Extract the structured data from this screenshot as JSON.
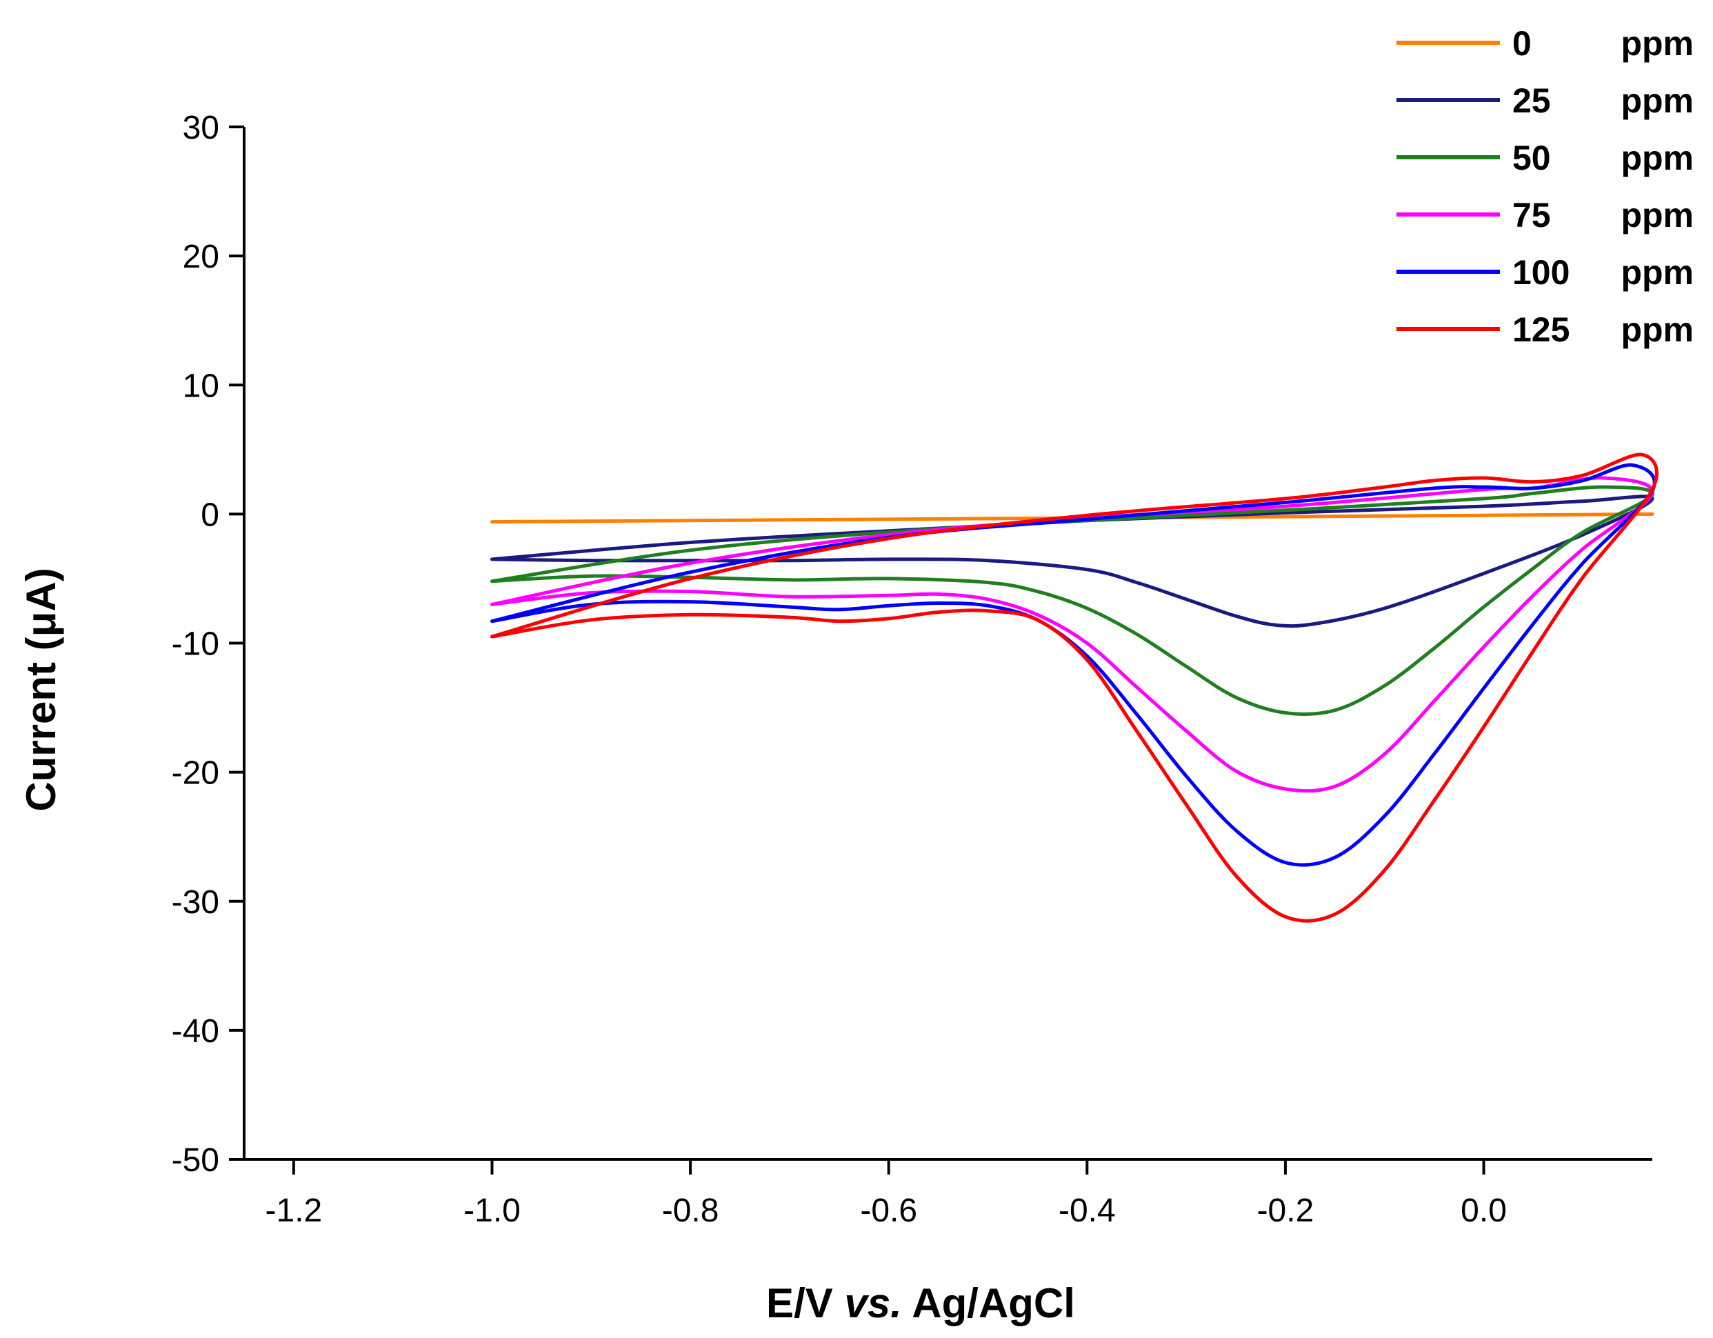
{
  "chart_data": {
    "type": "line",
    "title": "",
    "xlabel_prefix": "E/V ",
    "xlabel_italic": "vs.",
    "xlabel_suffix": " Ag/AgCl",
    "ylabel": "Current (μA)",
    "xlim": [
      -1.25,
      0.17
    ],
    "ylim": [
      -50,
      30
    ],
    "xticks": [
      -1.2,
      -1.0,
      -0.8,
      -0.6,
      -0.4,
      -0.2,
      0.0
    ],
    "xtick_labels": [
      "-1.2",
      "-1.0",
      "-0.8",
      "-0.6",
      "-0.4",
      "-0.2",
      "0.0"
    ],
    "yticks": [
      30,
      20,
      10,
      0,
      -10,
      -20,
      -30,
      -40,
      -50
    ],
    "ytick_labels": [
      "30",
      "20",
      "10",
      "0",
      "-10",
      "-20",
      "-30",
      "-40",
      "-50"
    ],
    "legend_position": "top-right",
    "series": [
      {
        "name": "0",
        "unit": "ppm",
        "color": "#ff8000",
        "points": [
          [
            -1.0,
            -0.6
          ],
          [
            -0.8,
            -0.5
          ],
          [
            -0.6,
            -0.4
          ],
          [
            -0.4,
            -0.3
          ],
          [
            -0.2,
            -0.2
          ],
          [
            0.0,
            -0.1
          ],
          [
            0.17,
            0.0
          ]
        ]
      },
      {
        "name": "25",
        "unit": "ppm",
        "color": "#1a1a80",
        "points": [
          [
            -1.0,
            -3.5
          ],
          [
            -0.9,
            -3.6
          ],
          [
            -0.8,
            -3.6
          ],
          [
            -0.7,
            -3.6
          ],
          [
            -0.6,
            -3.5
          ],
          [
            -0.5,
            -3.6
          ],
          [
            -0.4,
            -4.3
          ],
          [
            -0.35,
            -5.3
          ],
          [
            -0.3,
            -6.6
          ],
          [
            -0.25,
            -7.9
          ],
          [
            -0.21,
            -8.6
          ],
          [
            -0.17,
            -8.5
          ],
          [
            -0.1,
            -7.3
          ],
          [
            0.0,
            -4.6
          ],
          [
            0.1,
            -1.6
          ],
          [
            0.17,
            1.2
          ],
          [
            0.1,
            1.0
          ],
          [
            0.0,
            0.6
          ],
          [
            -0.2,
            0.1
          ],
          [
            -0.4,
            -0.5
          ],
          [
            -0.6,
            -1.3
          ],
          [
            -0.8,
            -2.2
          ],
          [
            -1.0,
            -3.5
          ]
        ]
      },
      {
        "name": "50",
        "unit": "ppm",
        "color": "#1f7f1f",
        "points": [
          [
            -1.0,
            -5.2
          ],
          [
            -0.9,
            -4.8
          ],
          [
            -0.8,
            -4.9
          ],
          [
            -0.7,
            -5.1
          ],
          [
            -0.6,
            -5.0
          ],
          [
            -0.5,
            -5.3
          ],
          [
            -0.45,
            -6.0
          ],
          [
            -0.4,
            -7.3
          ],
          [
            -0.35,
            -9.3
          ],
          [
            -0.3,
            -11.8
          ],
          [
            -0.25,
            -14.2
          ],
          [
            -0.2,
            -15.4
          ],
          [
            -0.15,
            -15.2
          ],
          [
            -0.1,
            -13.3
          ],
          [
            -0.05,
            -10.4
          ],
          [
            0.0,
            -7.2
          ],
          [
            0.05,
            -4.2
          ],
          [
            0.1,
            -1.4
          ],
          [
            0.17,
            1.5
          ],
          [
            0.12,
            2.1
          ],
          [
            0.05,
            1.6
          ],
          [
            0.0,
            1.2
          ],
          [
            -0.2,
            0.3
          ],
          [
            -0.4,
            -0.5
          ],
          [
            -0.6,
            -1.4
          ],
          [
            -0.8,
            -2.8
          ],
          [
            -1.0,
            -5.2
          ]
        ]
      },
      {
        "name": "75",
        "unit": "ppm",
        "color": "#ff00ff",
        "points": [
          [
            -1.0,
            -7.0
          ],
          [
            -0.9,
            -6.1
          ],
          [
            -0.8,
            -6.0
          ],
          [
            -0.7,
            -6.4
          ],
          [
            -0.6,
            -6.3
          ],
          [
            -0.55,
            -6.2
          ],
          [
            -0.5,
            -6.6
          ],
          [
            -0.45,
            -7.8
          ],
          [
            -0.4,
            -10.0
          ],
          [
            -0.35,
            -13.4
          ],
          [
            -0.3,
            -16.8
          ],
          [
            -0.25,
            -19.9
          ],
          [
            -0.2,
            -21.3
          ],
          [
            -0.15,
            -21.1
          ],
          [
            -0.1,
            -18.6
          ],
          [
            -0.05,
            -14.5
          ],
          [
            0.0,
            -10.3
          ],
          [
            0.05,
            -6.3
          ],
          [
            0.1,
            -2.7
          ],
          [
            0.17,
            1.6
          ],
          [
            0.12,
            2.8
          ],
          [
            0.05,
            2.0
          ],
          [
            0.0,
            1.9
          ],
          [
            -0.2,
            0.6
          ],
          [
            -0.4,
            -0.3
          ],
          [
            -0.6,
            -1.6
          ],
          [
            -0.8,
            -3.8
          ],
          [
            -1.0,
            -7.0
          ]
        ]
      },
      {
        "name": "100",
        "unit": "ppm",
        "color": "#0000ff",
        "points": [
          [
            -1.0,
            -8.3
          ],
          [
            -0.9,
            -7.0
          ],
          [
            -0.8,
            -6.8
          ],
          [
            -0.7,
            -7.2
          ],
          [
            -0.65,
            -7.4
          ],
          [
            -0.6,
            -7.1
          ],
          [
            -0.55,
            -6.9
          ],
          [
            -0.5,
            -7.1
          ],
          [
            -0.45,
            -8.2
          ],
          [
            -0.4,
            -11.0
          ],
          [
            -0.35,
            -15.5
          ],
          [
            -0.3,
            -20.3
          ],
          [
            -0.25,
            -24.5
          ],
          [
            -0.2,
            -27.0
          ],
          [
            -0.15,
            -26.6
          ],
          [
            -0.1,
            -23.4
          ],
          [
            -0.05,
            -18.6
          ],
          [
            0.0,
            -13.5
          ],
          [
            0.05,
            -8.5
          ],
          [
            0.1,
            -3.8
          ],
          [
            0.17,
            1.8
          ],
          [
            0.15,
            3.8
          ],
          [
            0.1,
            2.6
          ],
          [
            0.05,
            2.0
          ],
          [
            0.0,
            2.1
          ],
          [
            -0.05,
            2.0
          ],
          [
            -0.2,
            0.9
          ],
          [
            -0.4,
            -0.4
          ],
          [
            -0.6,
            -1.8
          ],
          [
            -0.8,
            -4.5
          ],
          [
            -1.0,
            -8.3
          ]
        ]
      },
      {
        "name": "125",
        "unit": "ppm",
        "color": "#ff0000",
        "points": [
          [
            -1.0,
            -9.5
          ],
          [
            -0.9,
            -8.2
          ],
          [
            -0.8,
            -7.8
          ],
          [
            -0.7,
            -8.0
          ],
          [
            -0.65,
            -8.3
          ],
          [
            -0.6,
            -8.1
          ],
          [
            -0.55,
            -7.6
          ],
          [
            -0.5,
            -7.5
          ],
          [
            -0.45,
            -8.2
          ],
          [
            -0.4,
            -11.3
          ],
          [
            -0.35,
            -16.8
          ],
          [
            -0.3,
            -22.5
          ],
          [
            -0.25,
            -28.0
          ],
          [
            -0.2,
            -31.2
          ],
          [
            -0.15,
            -31.0
          ],
          [
            -0.1,
            -27.6
          ],
          [
            -0.05,
            -22.2
          ],
          [
            0.0,
            -16.5
          ],
          [
            0.05,
            -10.6
          ],
          [
            0.1,
            -4.9
          ],
          [
            0.17,
            1.9
          ],
          [
            0.16,
            4.6
          ],
          [
            0.1,
            3.0
          ],
          [
            0.05,
            2.5
          ],
          [
            0.0,
            2.8
          ],
          [
            -0.05,
            2.6
          ],
          [
            -0.1,
            2.1
          ],
          [
            -0.2,
            1.2
          ],
          [
            -0.4,
            -0.1
          ],
          [
            -0.6,
            -1.9
          ],
          [
            -0.8,
            -5.0
          ],
          [
            -1.0,
            -9.5
          ]
        ]
      }
    ]
  }
}
